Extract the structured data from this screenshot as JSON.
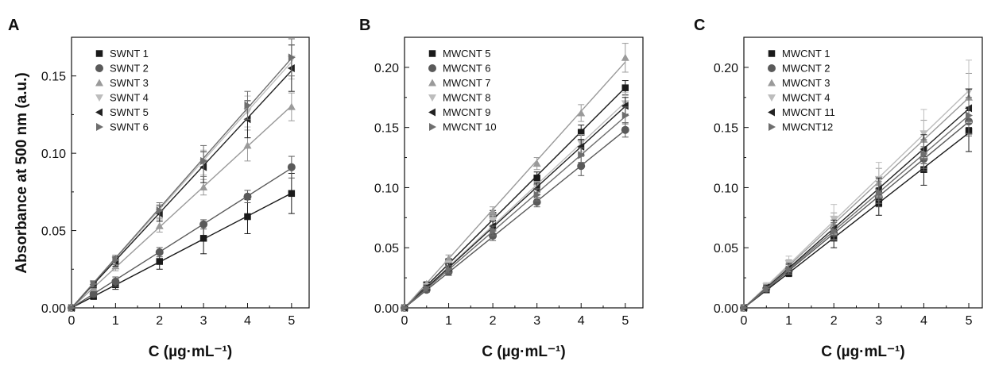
{
  "ylabel": "Absorbance at 500 nm (a.u.)",
  "chart_data": [
    {
      "panel": "A",
      "type": "line",
      "xlabel": "C (µg·mL⁻¹)",
      "ylabel": "Absorbance at 500 nm (a.u.)",
      "xlim": [
        0,
        5.4
      ],
      "ylim": [
        0,
        0.175
      ],
      "xticks": [
        "0",
        "1",
        "2",
        "3",
        "4",
        "5"
      ],
      "yticks": [
        "0.00",
        "0.05",
        "0.10",
        "0.15"
      ],
      "ytick_values": [
        0,
        0.05,
        0.1,
        0.15
      ],
      "legend_position": "top-left",
      "x": [
        0,
        0.5,
        1,
        2,
        3,
        4,
        5
      ],
      "series": [
        {
          "name": "SWNT 1",
          "marker": "square",
          "color": "#1a1a1a",
          "values": [
            0,
            0.0075,
            0.015,
            0.03,
            0.045,
            0.059,
            0.074
          ],
          "errors": [
            0,
            0.002,
            0.003,
            0.005,
            0.01,
            0.011,
            0.013
          ]
        },
        {
          "name": "SWNT 2",
          "marker": "circle",
          "color": "#5a5a5a",
          "values": [
            0,
            0.009,
            0.017,
            0.036,
            0.054,
            0.072,
            0.091
          ],
          "errors": [
            0,
            0.002,
            0.003,
            0.003,
            0.003,
            0.004,
            0.007
          ]
        },
        {
          "name": "SWNT 3",
          "marker": "triangle-up",
          "color": "#9a9a9a",
          "values": [
            0,
            0.013,
            0.027,
            0.053,
            0.078,
            0.105,
            0.13
          ],
          "errors": [
            0,
            0.002,
            0.003,
            0.004,
            0.005,
            0.01,
            0.009
          ]
        },
        {
          "name": "SWNT 4",
          "marker": "triangle-down",
          "color": "#bdbdbd",
          "values": [
            0,
            0.0155,
            0.031,
            0.062,
            0.094,
            0.127,
            0.161
          ],
          "errors": [
            0,
            0.002,
            0.003,
            0.005,
            0.008,
            0.01,
            0.013
          ]
        },
        {
          "name": "SWNT 5",
          "marker": "triangle-left",
          "color": "#222222",
          "values": [
            0,
            0.015,
            0.03,
            0.061,
            0.091,
            0.122,
            0.155
          ],
          "errors": [
            0,
            0.002,
            0.003,
            0.005,
            0.01,
            0.012,
            0.015
          ]
        },
        {
          "name": "SWNT 6",
          "marker": "triangle-right",
          "color": "#6e6e6e",
          "values": [
            0,
            0.0155,
            0.031,
            0.063,
            0.095,
            0.131,
            0.162
          ],
          "errors": [
            0,
            0.002,
            0.003,
            0.005,
            0.01,
            0.009,
            0.012
          ]
        }
      ]
    },
    {
      "panel": "B",
      "type": "line",
      "xlabel": "C (µg·mL⁻¹)",
      "xlim": [
        0,
        5.4
      ],
      "ylim": [
        0,
        0.225
      ],
      "xticks": [
        "0",
        "1",
        "2",
        "3",
        "4",
        "5"
      ],
      "yticks": [
        "0.00",
        "0.05",
        "0.10",
        "0.15",
        "0.20"
      ],
      "ytick_values": [
        0,
        0.05,
        0.1,
        0.15,
        0.2
      ],
      "legend_position": "top-left",
      "x": [
        0,
        0.5,
        1,
        2,
        3,
        4,
        5
      ],
      "series": [
        {
          "name": "MWCNT 5",
          "marker": "square",
          "color": "#1a1a1a",
          "values": [
            0,
            0.019,
            0.038,
            0.077,
            0.108,
            0.146,
            0.183
          ],
          "errors": [
            0,
            0.002,
            0.003,
            0.004,
            0.005,
            0.006,
            0.006
          ]
        },
        {
          "name": "MWCNT 6",
          "marker": "circle",
          "color": "#5a5a5a",
          "values": [
            0,
            0.015,
            0.03,
            0.06,
            0.088,
            0.118,
            0.148
          ],
          "errors": [
            0,
            0.002,
            0.003,
            0.004,
            0.004,
            0.008,
            0.006
          ]
        },
        {
          "name": "MWCNT 7",
          "marker": "triangle-up",
          "color": "#9a9a9a",
          "values": [
            0,
            0.02,
            0.041,
            0.08,
            0.12,
            0.162,
            0.208
          ],
          "errors": [
            0,
            0.002,
            0.003,
            0.004,
            0.005,
            0.007,
            0.012
          ]
        },
        {
          "name": "MWCNT 8",
          "marker": "triangle-down",
          "color": "#bdbdbd",
          "values": [
            0,
            0.018,
            0.036,
            0.073,
            0.1,
            0.137,
            0.17
          ],
          "errors": [
            0,
            0.002,
            0.003,
            0.004,
            0.005,
            0.007,
            0.009
          ]
        },
        {
          "name": "MWCNT 9",
          "marker": "triangle-left",
          "color": "#222222",
          "values": [
            0,
            0.017,
            0.034,
            0.068,
            0.099,
            0.134,
            0.168
          ],
          "errors": [
            0,
            0.002,
            0.003,
            0.004,
            0.005,
            0.006,
            0.007
          ]
        },
        {
          "name": "MWCNT 10",
          "marker": "triangle-right",
          "color": "#6e6e6e",
          "values": [
            0,
            0.016,
            0.032,
            0.064,
            0.094,
            0.127,
            0.16
          ],
          "errors": [
            0,
            0.002,
            0.003,
            0.004,
            0.005,
            0.006,
            0.007
          ]
        }
      ]
    },
    {
      "panel": "C",
      "type": "line",
      "xlabel": "C (µg·mL⁻¹)",
      "xlim": [
        0,
        5.3
      ],
      "ylim": [
        0,
        0.225
      ],
      "xticks": [
        "0",
        "1",
        "2",
        "3",
        "4",
        "5"
      ],
      "yticks": [
        "0.00",
        "0.05",
        "0.10",
        "0.15",
        "0.20"
      ],
      "ytick_values": [
        0,
        0.05,
        0.1,
        0.15,
        0.2
      ],
      "legend_position": "top-left",
      "x": [
        0,
        0.5,
        1,
        2,
        3,
        4,
        5
      ],
      "series": [
        {
          "name": "MWCNT 1",
          "marker": "square",
          "color": "#1a1a1a",
          "values": [
            0,
            0.015,
            0.029,
            0.058,
            0.087,
            0.115,
            0.147
          ],
          "errors": [
            0,
            0.002,
            0.003,
            0.008,
            0.01,
            0.013,
            0.017
          ]
        },
        {
          "name": "MWCNT 2",
          "marker": "circle",
          "color": "#5a5a5a",
          "values": [
            0,
            0.016,
            0.031,
            0.062,
            0.092,
            0.124,
            0.155
          ],
          "errors": [
            0,
            0.002,
            0.003,
            0.006,
            0.008,
            0.01,
            0.012
          ]
        },
        {
          "name": "MWCNT 3",
          "marker": "triangle-up",
          "color": "#9a9a9a",
          "values": [
            0,
            0.017,
            0.035,
            0.07,
            0.104,
            0.14,
            0.175
          ],
          "errors": [
            0,
            0.003,
            0.005,
            0.009,
            0.012,
            0.016,
            0.02
          ]
        },
        {
          "name": "MWCNT 4",
          "marker": "triangle-down",
          "color": "#bdbdbd",
          "values": [
            0,
            0.018,
            0.037,
            0.074,
            0.107,
            0.145,
            0.18
          ],
          "errors": [
            0,
            0.003,
            0.006,
            0.012,
            0.014,
            0.02,
            0.026
          ]
        },
        {
          "name": "MWCNT 11",
          "marker": "triangle-left",
          "color": "#222222",
          "values": [
            0,
            0.017,
            0.033,
            0.066,
            0.099,
            0.132,
            0.166
          ],
          "errors": [
            0,
            0.002,
            0.004,
            0.007,
            0.009,
            0.012,
            0.016
          ]
        },
        {
          "name": "MWCNT12",
          "marker": "triangle-right",
          "color": "#6e6e6e",
          "values": [
            0,
            0.016,
            0.032,
            0.064,
            0.096,
            0.128,
            0.16
          ],
          "errors": [
            0,
            0.002,
            0.004,
            0.007,
            0.009,
            0.012,
            0.015
          ]
        }
      ]
    }
  ]
}
